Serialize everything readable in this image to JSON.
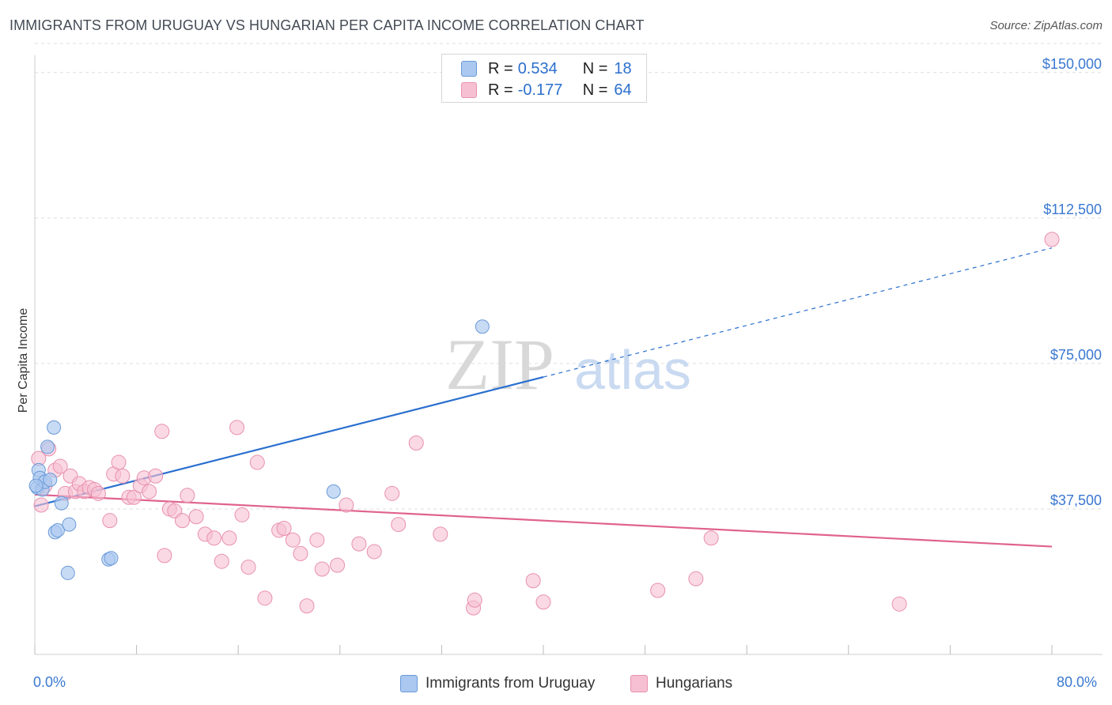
{
  "title": "IMMIGRANTS FROM URUGUAY VS HUNGARIAN PER CAPITA INCOME CORRELATION CHART",
  "source": "Source: ZipAtlas.com",
  "watermark": {
    "zip": "ZIP",
    "atlas": "atlas"
  },
  "legend": {
    "rows": [
      {
        "r_label": "R =",
        "r_value": "0.534",
        "n_label": "N =",
        "n_value": "18"
      },
      {
        "r_label": "R =",
        "r_value": "-0.177",
        "n_label": "N =",
        "n_value": "64"
      }
    ]
  },
  "bottom_legend": {
    "series1": "Immigrants from Uruguay",
    "series2": "Hungarians"
  },
  "colors": {
    "series1_fill": "#aac8f0",
    "series1_stroke": "#6a9ad8",
    "series1_line": "#2a6fcf",
    "series2_fill": "#f6c0d2",
    "series2_stroke": "#e890ae",
    "series2_line": "#e0628f",
    "axis_text": "#3a78d0",
    "grid": "#dddddd"
  },
  "chart_data": {
    "type": "scatter",
    "title": "IMMIGRANTS FROM URUGUAY VS HUNGARIAN PER CAPITA INCOME CORRELATION CHART",
    "xlabel": "",
    "ylabel": "Per Capita Income",
    "xlim": [
      0,
      80
    ],
    "ylim": [
      0,
      157500
    ],
    "x_tick_labels": [
      "0.0%",
      "80.0%"
    ],
    "y_ticks": [
      37500,
      75000,
      112500,
      150000
    ],
    "y_tick_labels": [
      "$37,500",
      "$75,000",
      "$112,500",
      "$150,000"
    ],
    "series": [
      {
        "name": "Immigrants from Uruguay",
        "R": 0.534,
        "N": 18,
        "points": [
          [
            0.2,
            43000
          ],
          [
            0.3,
            47500
          ],
          [
            0.4,
            45500
          ],
          [
            0.6,
            42500
          ],
          [
            0.8,
            44500
          ],
          [
            1.0,
            53500
          ],
          [
            1.2,
            45000
          ],
          [
            1.5,
            58500
          ],
          [
            1.6,
            31500
          ],
          [
            1.8,
            32000
          ],
          [
            2.1,
            39000
          ],
          [
            2.6,
            21000
          ],
          [
            2.7,
            33500
          ],
          [
            5.8,
            24500
          ],
          [
            6.0,
            24800
          ],
          [
            23.5,
            42000
          ],
          [
            35.2,
            84500
          ],
          [
            0.1,
            43500
          ]
        ],
        "trend": {
          "x0": 0,
          "y0": 38200,
          "x1": 40,
          "y1": 71500,
          "dash_to_x": 80,
          "dash_to_y": 104800
        }
      },
      {
        "name": "Hungarians",
        "R": -0.177,
        "N": 64,
        "points": [
          [
            0.3,
            50500
          ],
          [
            0.5,
            38500
          ],
          [
            0.8,
            43500
          ],
          [
            1.1,
            53000
          ],
          [
            1.6,
            47500
          ],
          [
            2.0,
            48500
          ],
          [
            2.4,
            41500
          ],
          [
            2.8,
            46000
          ],
          [
            3.2,
            42000
          ],
          [
            3.5,
            44000
          ],
          [
            3.9,
            42000
          ],
          [
            4.3,
            43000
          ],
          [
            4.7,
            42500
          ],
          [
            5.0,
            41500
          ],
          [
            5.9,
            34500
          ],
          [
            6.2,
            46500
          ],
          [
            6.6,
            49500
          ],
          [
            6.9,
            46000
          ],
          [
            7.4,
            40500
          ],
          [
            7.8,
            40500
          ],
          [
            8.3,
            43500
          ],
          [
            8.6,
            45500
          ],
          [
            9.0,
            42000
          ],
          [
            9.5,
            46000
          ],
          [
            10.0,
            57500
          ],
          [
            10.2,
            25500
          ],
          [
            10.6,
            37500
          ],
          [
            11.0,
            37000
          ],
          [
            11.6,
            34500
          ],
          [
            12.0,
            41000
          ],
          [
            12.7,
            35500
          ],
          [
            13.4,
            31000
          ],
          [
            14.1,
            30000
          ],
          [
            14.7,
            24000
          ],
          [
            15.3,
            30000
          ],
          [
            15.9,
            58500
          ],
          [
            16.3,
            36000
          ],
          [
            16.8,
            22500
          ],
          [
            17.5,
            49500
          ],
          [
            18.1,
            14500
          ],
          [
            19.2,
            32000
          ],
          [
            19.6,
            32500
          ],
          [
            20.3,
            29500
          ],
          [
            20.9,
            26000
          ],
          [
            21.4,
            12500
          ],
          [
            22.2,
            29500
          ],
          [
            22.6,
            22000
          ],
          [
            23.8,
            23000
          ],
          [
            24.5,
            38500
          ],
          [
            25.5,
            28500
          ],
          [
            26.7,
            26500
          ],
          [
            28.1,
            41500
          ],
          [
            28.6,
            33500
          ],
          [
            30.0,
            54500
          ],
          [
            31.9,
            31000
          ],
          [
            34.5,
            12000
          ],
          [
            34.6,
            14000
          ],
          [
            39.2,
            19000
          ],
          [
            40.0,
            13500
          ],
          [
            49.0,
            16500
          ],
          [
            52.0,
            19500
          ],
          [
            53.2,
            30000
          ],
          [
            68.0,
            13000
          ],
          [
            80.0,
            107000
          ]
        ],
        "trend": {
          "x0": 0,
          "y0": 41200,
          "x1": 80,
          "y1": 27800
        }
      }
    ]
  }
}
